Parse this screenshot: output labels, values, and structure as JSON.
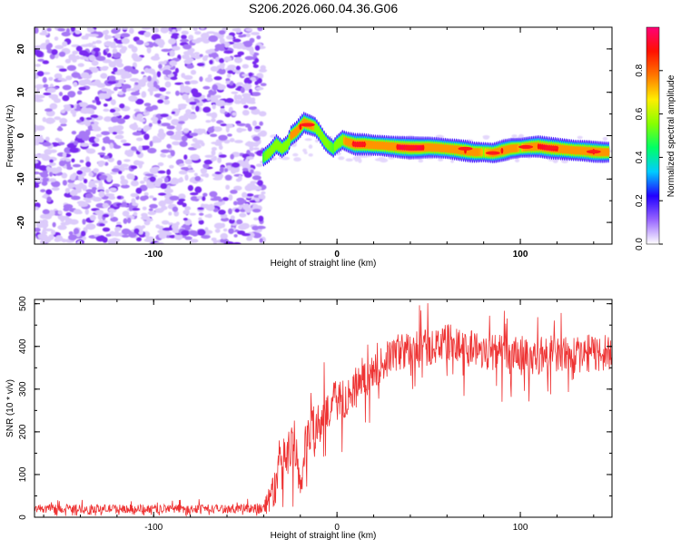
{
  "figure_title": "S206.2026.060.04.36.G06",
  "chart_data": [
    {
      "type": "heatmap",
      "title": "S206.2026.060.04.36.G06",
      "xlabel": "Height of straight line (km)",
      "ylabel": "Frequency (Hz)",
      "xlim": [
        -165,
        150
      ],
      "ylim": [
        -25,
        25
      ],
      "xticks": [
        "-100",
        "0",
        "100"
      ],
      "yticks": [
        "20",
        "10",
        "0",
        "-10",
        "-20"
      ],
      "noise_region_x": [
        -165,
        -40
      ],
      "ridge": {
        "x": [
          -40,
          -37,
          -35,
          -33,
          -30,
          -27,
          -25,
          -22,
          -20,
          -18,
          -15,
          -12,
          -10,
          -7,
          -5,
          -2,
          0,
          3,
          6,
          10,
          15,
          20,
          25,
          30,
          35,
          40,
          45,
          50,
          55,
          60,
          65,
          70,
          75,
          80,
          85,
          90,
          95,
          100,
          105,
          110,
          115,
          120,
          125,
          130,
          135,
          140,
          145,
          148
        ],
        "y": [
          -5,
          -4,
          -3,
          -2,
          -3,
          -2,
          0,
          1,
          2,
          3,
          2.5,
          2,
          1,
          -1,
          -2,
          -3,
          -2,
          -1,
          -1.5,
          -2,
          -2,
          -2.2,
          -2.3,
          -2.5,
          -2.7,
          -2.8,
          -2.8,
          -2.7,
          -2.8,
          -3,
          -3.2,
          -3.5,
          -3.8,
          -3.8,
          -4,
          -3.5,
          -3,
          -2.8,
          -2.6,
          -2.5,
          -2.8,
          -3,
          -3.2,
          -3.4,
          -3.5,
          -3.7,
          -3.8,
          -3.8
        ],
        "amplitude": [
          0.5,
          0.6,
          0.6,
          0.7,
          0.55,
          0.6,
          0.75,
          0.8,
          0.9,
          0.85,
          0.8,
          0.7,
          0.6,
          0.6,
          0.55,
          0.5,
          0.6,
          0.7,
          0.8,
          0.95,
          0.9,
          0.8,
          0.8,
          0.85,
          0.95,
          1.0,
          0.95,
          0.85,
          0.8,
          0.75,
          0.85,
          0.9,
          0.8,
          0.7,
          0.75,
          0.9,
          0.85,
          0.7,
          0.8,
          0.9,
          0.95,
          0.9,
          0.85,
          0.8,
          0.85,
          0.9,
          0.85,
          0.8
        ]
      },
      "colorbar": {
        "label": "Normalized spectral amplitude",
        "ticks": [
          "0.0",
          "0.2",
          "0.4",
          "0.6",
          "0.8"
        ],
        "range": [
          0,
          1
        ],
        "colors": [
          "#ffffff",
          "#9966ff",
          "#2200ff",
          "#00ccff",
          "#00ff66",
          "#88ff00",
          "#ffee00",
          "#ff7700",
          "#ff1100",
          "#ff0077"
        ]
      }
    },
    {
      "type": "line",
      "xlabel": "Height of straight line (km)",
      "ylabel": "SNR (10 * v/v)",
      "xlim": [
        -165,
        150
      ],
      "ylim": [
        0,
        510
      ],
      "xticks": [
        "-100",
        "0",
        "100"
      ],
      "yticks": [
        "500",
        "400",
        "300",
        "200",
        "100",
        "0"
      ],
      "color": "#ee3333",
      "series": [
        {
          "name": "SNR",
          "x": [
            -165,
            -120,
            -80,
            -50,
            -40,
            -35,
            -30,
            -25,
            -20,
            -18,
            -15,
            -10,
            -5,
            0,
            5,
            10,
            15,
            20,
            25,
            30,
            35,
            40,
            50,
            60,
            70,
            80,
            90,
            100,
            110,
            120,
            130,
            140,
            150
          ],
          "baseline": [
            20,
            20,
            20,
            20,
            22,
            60,
            120,
            160,
            80,
            140,
            200,
            230,
            260,
            270,
            280,
            300,
            320,
            340,
            360,
            380,
            390,
            390,
            400,
            410,
            400,
            390,
            385,
            375,
            380,
            385,
            380,
            385,
            380
          ],
          "spread": [
            10,
            10,
            10,
            10,
            15,
            50,
            60,
            60,
            50,
            60,
            60,
            60,
            55,
            50,
            45,
            45,
            45,
            40,
            40,
            45,
            45,
            45,
            45,
            45,
            45,
            45,
            45,
            45,
            45,
            45,
            45,
            45,
            45
          ]
        }
      ]
    }
  ]
}
